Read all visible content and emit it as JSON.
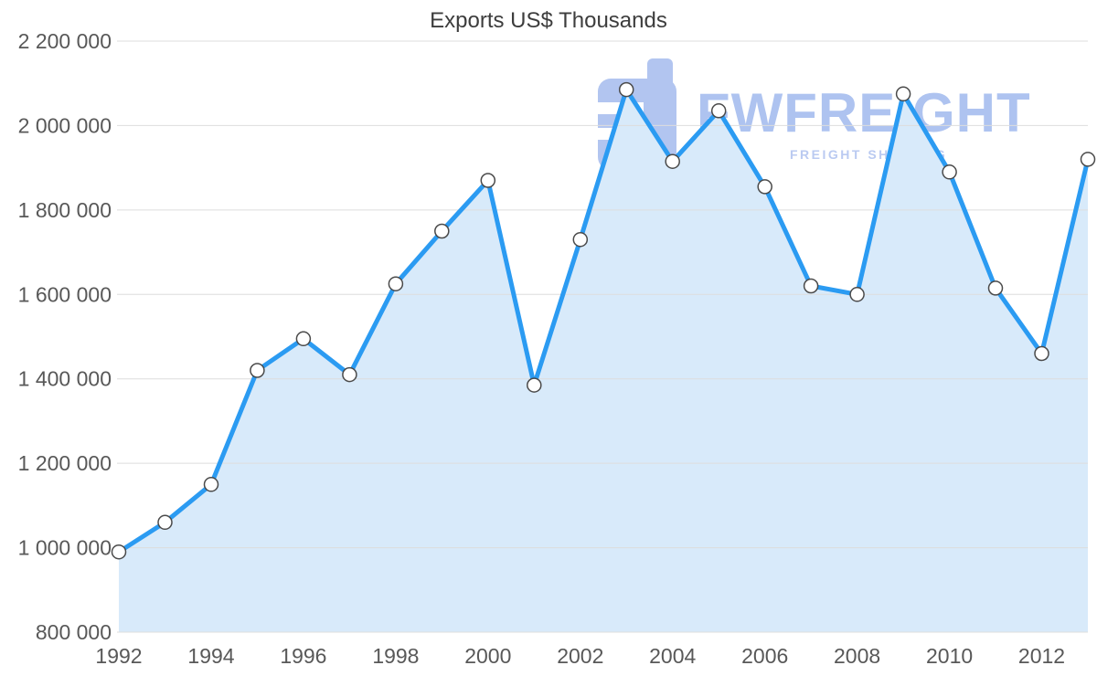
{
  "chart_data": {
    "type": "area",
    "title": "Exports US$ Thousands",
    "x": [
      1992,
      1993,
      1994,
      1995,
      1996,
      1997,
      1998,
      1999,
      2000,
      2001,
      2002,
      2003,
      2004,
      2005,
      2006,
      2007,
      2008,
      2009,
      2010,
      2011,
      2012,
      2013
    ],
    "values": [
      990000,
      1060000,
      1150000,
      1420000,
      1495000,
      1410000,
      1625000,
      1750000,
      1870000,
      1385000,
      1730000,
      2085000,
      1915000,
      2035000,
      1855000,
      1620000,
      1600000,
      2075000,
      1890000,
      1615000,
      1460000,
      1920000
    ],
    "x_tick_years": [
      1992,
      1994,
      1996,
      1998,
      2000,
      2002,
      2004,
      2006,
      2008,
      2010,
      2012
    ],
    "y_ticks": [
      800000,
      1000000,
      1200000,
      1400000,
      1600000,
      1800000,
      2000000,
      2200000
    ],
    "y_tick_labels": [
      "800 000",
      "1 000 000",
      "1 200 000",
      "1 400 000",
      "1 600 000",
      "1 800 000",
      "2 000 000",
      "2 200 000"
    ],
    "ylim": [
      800000,
      2200000
    ],
    "xlabel": "",
    "ylabel": "",
    "grid": "horizontal",
    "legend": "none",
    "marker": "circle-open",
    "colors": {
      "line": "#2b9bf2",
      "area_fill": "#d8eafa",
      "marker_fill": "#ffffff",
      "marker_stroke": "#4a4a4a",
      "grid": "#dddddd",
      "title_text": "#3d3d3d",
      "axis_text": "#585858",
      "watermark": "#9db6ec"
    }
  },
  "watermark": {
    "brand": "FWFREIGHT",
    "tagline": "FREIGHT SHIPPING"
  }
}
